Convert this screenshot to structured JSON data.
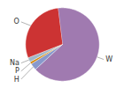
{
  "chart_data": {
    "type": "pie",
    "categories": [
      "W",
      "H",
      "P",
      "Na",
      "O"
    ],
    "values": [
      65.0,
      3.0,
      1.0,
      2.0,
      29.0
    ],
    "colors": [
      "#a07ab0",
      "#8899cc",
      "#d4880a",
      "#a0b8c8",
      "#cc3333"
    ]
  }
}
